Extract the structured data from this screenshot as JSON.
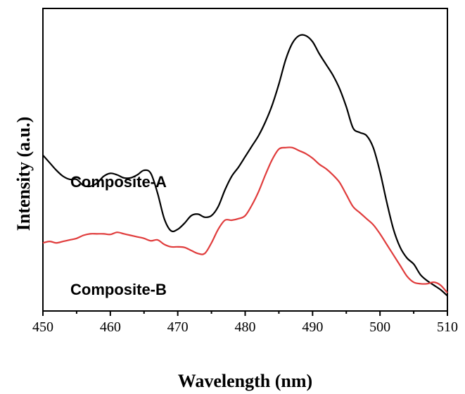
{
  "chart_data": {
    "type": "line",
    "title": "",
    "xlabel": "Wavelength (nm)",
    "ylabel": "Intensity (a.u.)",
    "xlim": [
      450,
      510
    ],
    "ylim": [
      0,
      100
    ],
    "y_tick_labels_shown": false,
    "x_ticks": [
      450,
      460,
      470,
      480,
      490,
      500,
      510
    ],
    "x_tick_labels": [
      "450",
      "460",
      "470",
      "480",
      "490",
      "500",
      "510"
    ],
    "grid": false,
    "legend": "none",
    "series": [
      {
        "name": "Composite-A",
        "color": "#000000",
        "x": [
          450,
          451,
          452,
          453,
          454,
          455,
          456,
          457,
          458,
          459,
          460,
          461,
          462,
          463,
          464,
          465,
          466,
          467,
          468,
          469,
          470,
          471,
          472,
          473,
          474,
          475,
          476,
          477,
          478,
          479,
          480,
          481,
          482,
          483,
          484,
          485,
          486,
          487,
          488,
          489,
          490,
          491,
          492,
          493,
          494,
          495,
          496,
          497,
          498,
          499,
          500,
          501,
          502,
          503,
          504,
          505,
          506,
          507,
          508,
          509,
          510
        ],
        "values": [
          51.5,
          49,
          46.5,
          44.5,
          43.5,
          43.5,
          41.5,
          41.2,
          42.2,
          44.5,
          45.5,
          45,
          44,
          44,
          45,
          46.5,
          45.5,
          39,
          30.5,
          26.5,
          27,
          29,
          31.5,
          32,
          31,
          31.5,
          34.5,
          40,
          44.5,
          47.5,
          51,
          54.5,
          58,
          62.5,
          68,
          75,
          83,
          88.5,
          91,
          91,
          89,
          85,
          81.5,
          78,
          73.5,
          67.5,
          60.5,
          59,
          58,
          54,
          46,
          36,
          27,
          21,
          17.5,
          15.5,
          12,
          10,
          8.5,
          7,
          5
        ]
      },
      {
        "name": "Composite-B",
        "color": "#e03c3c",
        "x": [
          450,
          451,
          452,
          453,
          454,
          455,
          456,
          457,
          458,
          459,
          460,
          461,
          462,
          463,
          464,
          465,
          466,
          467,
          468,
          469,
          470,
          471,
          472,
          473,
          474,
          475,
          476,
          477,
          478,
          479,
          480,
          481,
          482,
          483,
          484,
          485,
          486,
          487,
          488,
          489,
          490,
          491,
          492,
          493,
          494,
          495,
          496,
          497,
          498,
          499,
          500,
          501,
          502,
          503,
          504,
          505,
          506,
          507,
          508,
          509,
          510
        ],
        "values": [
          22.5,
          23,
          22.5,
          23,
          23.5,
          24,
          25,
          25.5,
          25.5,
          25.5,
          25.3,
          26,
          25.5,
          25,
          24.5,
          24,
          23.2,
          23.5,
          22,
          21.2,
          21.2,
          21,
          20,
          19,
          19,
          22.5,
          27,
          30,
          30,
          30.5,
          31.5,
          35,
          39.5,
          45,
          50,
          53.5,
          54,
          54,
          53,
          52,
          50.5,
          48.5,
          47,
          45,
          42.5,
          38.5,
          34.5,
          32.5,
          30.5,
          28.5,
          25.5,
          22,
          18.5,
          15,
          11.5,
          9.5,
          9,
          9,
          9.5,
          8.5,
          6
        ]
      }
    ],
    "annotations": [
      {
        "text": "Composite-A",
        "series": "Composite-A"
      },
      {
        "text": "Composite-B",
        "series": "Composite-B"
      }
    ]
  }
}
